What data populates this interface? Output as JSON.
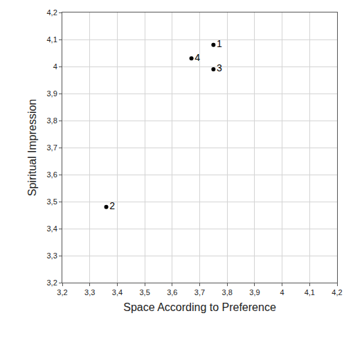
{
  "chart_data": {
    "type": "scatter",
    "x_label": "Space According to Preference",
    "y_label": "Spiritual Impression",
    "x": [
      3.75,
      3.36,
      3.75,
      3.67
    ],
    "values": [
      4.08,
      3.48,
      3.99,
      4.03
    ],
    "labels": [
      "1",
      "2",
      "3",
      "4"
    ],
    "color": "#000000",
    "marker": "circle",
    "xlim": [
      3.2,
      4.2
    ],
    "ylim": [
      3.2,
      4.2
    ],
    "xticks": [
      {
        "value": 3.2,
        "label": "3,2"
      },
      {
        "value": 3.3,
        "label": "3,3"
      },
      {
        "value": 3.4,
        "label": "3,4"
      },
      {
        "value": 3.5,
        "label": "3,5"
      },
      {
        "value": 3.6,
        "label": "3,6"
      },
      {
        "value": 3.7,
        "label": "3,7"
      },
      {
        "value": 3.8,
        "label": "3,8"
      },
      {
        "value": 3.9,
        "label": "3,9"
      },
      {
        "value": 4,
        "label": "4"
      },
      {
        "value": 4.1,
        "label": "4,1"
      },
      {
        "value": 4.2,
        "label": "4,2"
      }
    ],
    "yticks": [
      {
        "value": 3.2,
        "label": "3,2"
      },
      {
        "value": 3.3,
        "label": "3,3"
      },
      {
        "value": 3.4,
        "label": "3,4"
      },
      {
        "value": 3.5,
        "label": "3,5"
      },
      {
        "value": 3.6,
        "label": "3,6"
      },
      {
        "value": 3.7,
        "label": "3,7"
      },
      {
        "value": 3.8,
        "label": "3,8"
      },
      {
        "value": 3.9,
        "label": "3,9"
      },
      {
        "value": 4,
        "label": "4"
      },
      {
        "value": 4.1,
        "label": "4,1"
      },
      {
        "value": 4.2,
        "label": "4,2"
      }
    ],
    "grid": true
  }
}
